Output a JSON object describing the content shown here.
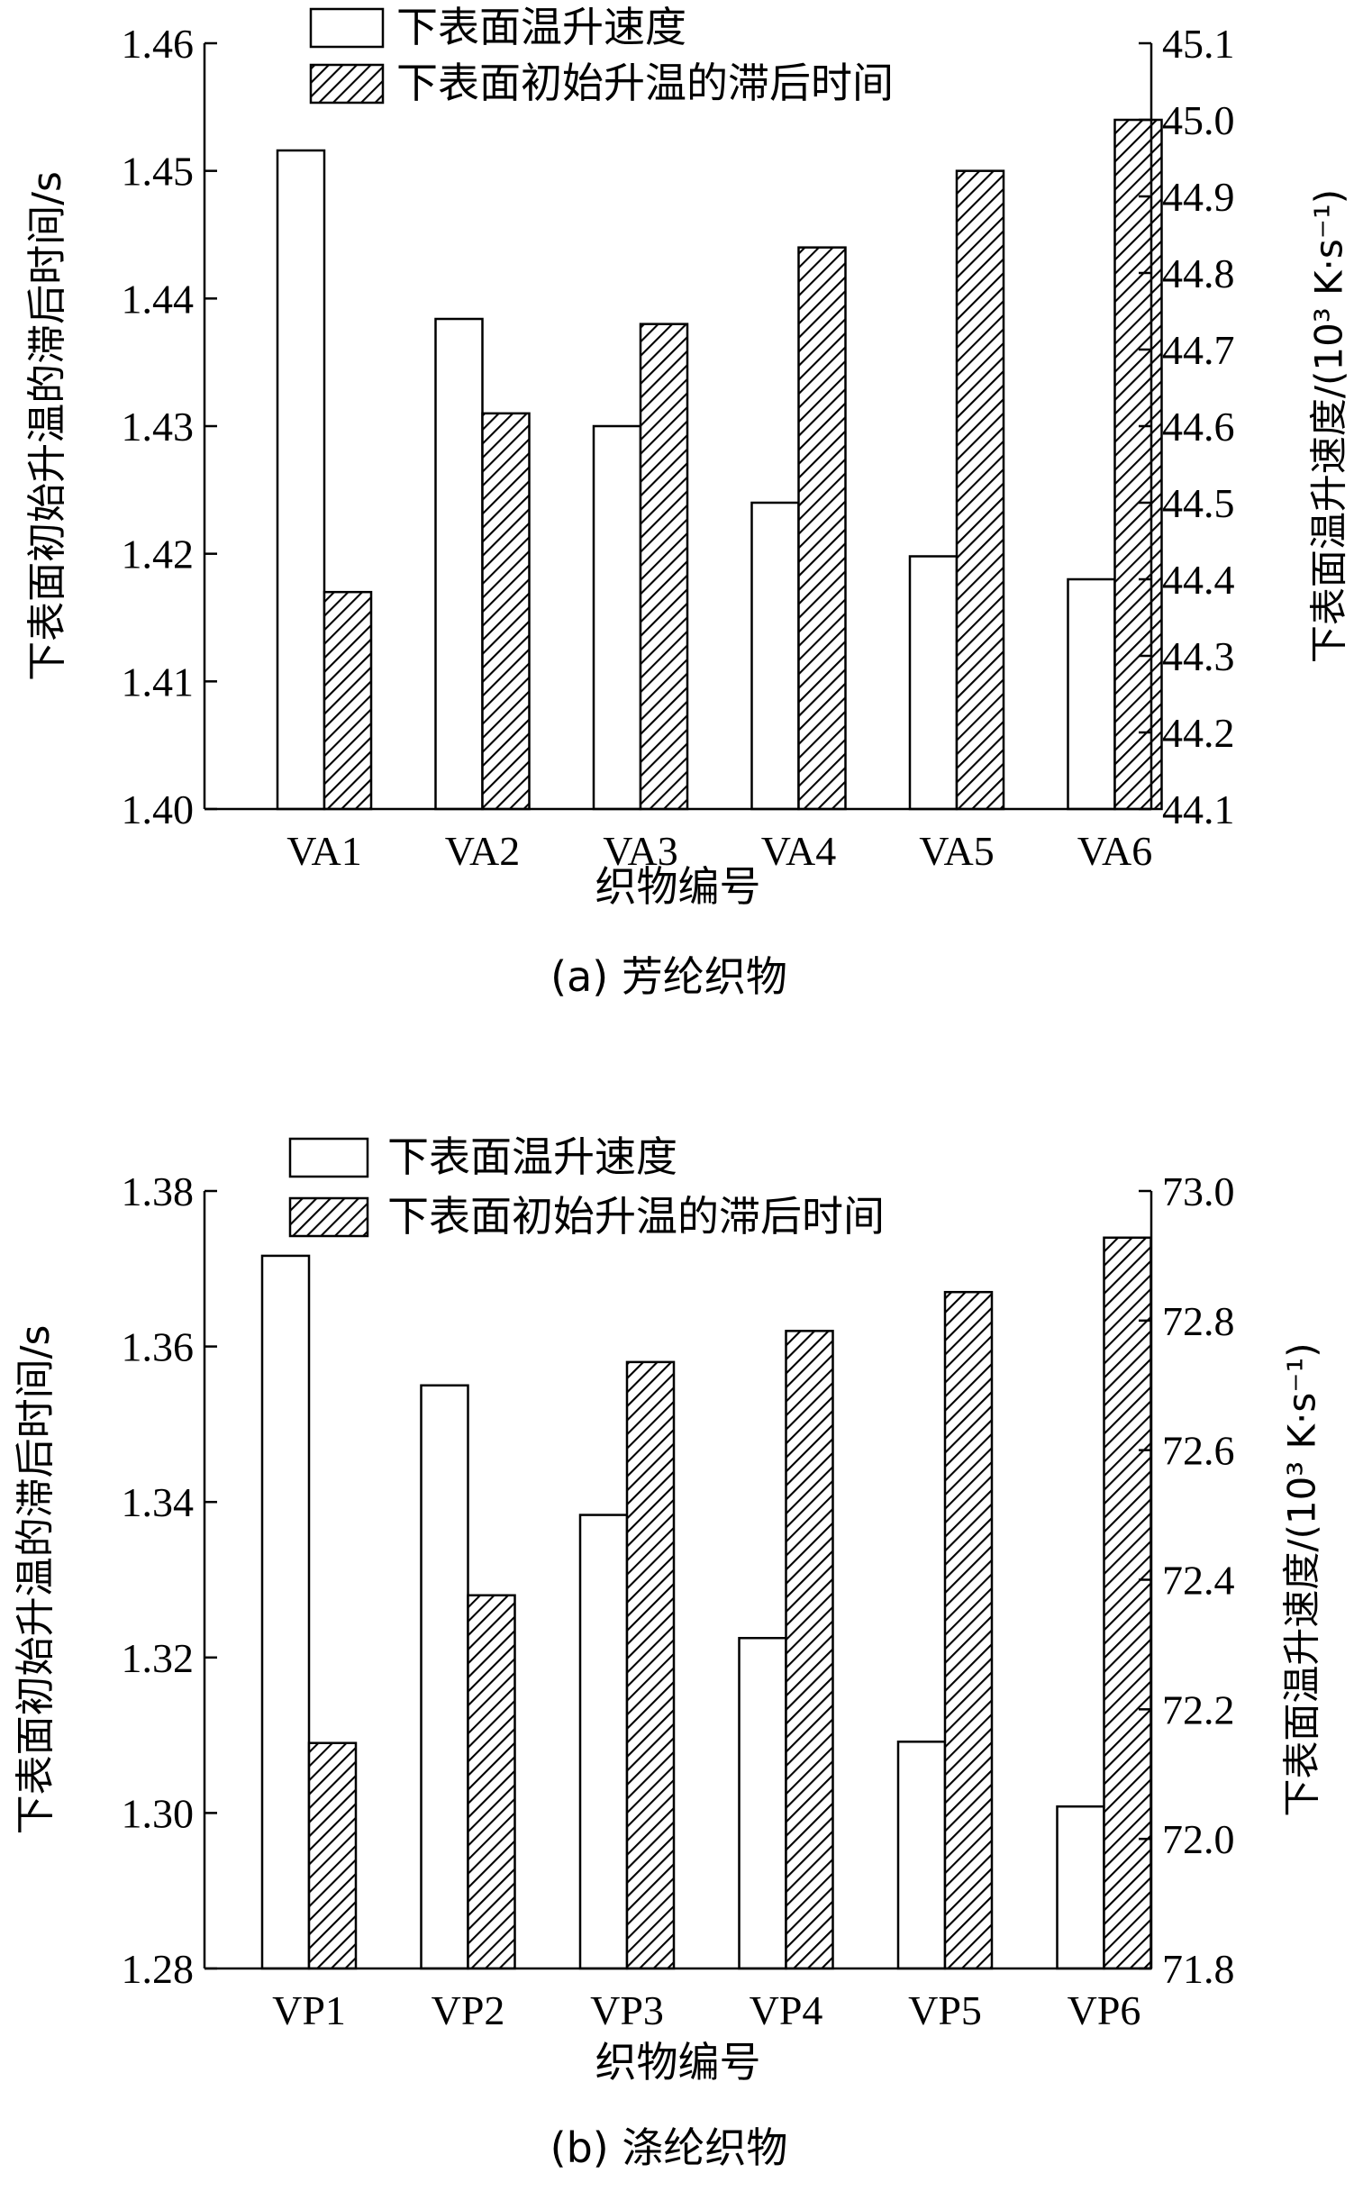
{
  "chart_data": [
    {
      "id": "a",
      "type": "bar",
      "caption": "(a) 芳纶织物",
      "xlabel": "织物编号",
      "ylabel_left": "下表面初始升温的滞后时间/s",
      "ylabel_right": "下表面温升速度/(10³ K·s⁻¹)",
      "categories": [
        "VA1",
        "VA2",
        "VA3",
        "VA4",
        "VA5",
        "VA6"
      ],
      "ylim_left": [
        1.4,
        1.46
      ],
      "yticks_left": [
        "1.40",
        "1.41",
        "1.42",
        "1.43",
        "1.44",
        "1.45",
        "1.46"
      ],
      "ylim_right": [
        44.1,
        45.1
      ],
      "yticks_right": [
        "44.1",
        "44.2",
        "44.3",
        "44.4",
        "44.5",
        "44.6",
        "44.7",
        "44.8",
        "44.9",
        "45.0",
        "45.1"
      ],
      "series": [
        {
          "name": "下表面温升速度",
          "axis": "right",
          "pattern": "none",
          "values": [
            44.96,
            44.74,
            44.6,
            44.5,
            44.43,
            44.4
          ]
        },
        {
          "name": "下表面初始升温的滞后时间",
          "axis": "left",
          "pattern": "hatch",
          "values": [
            1.417,
            1.431,
            1.438,
            1.444,
            1.45,
            1.454
          ]
        }
      ]
    },
    {
      "id": "b",
      "type": "bar",
      "caption": "(b) 涤纶织物",
      "xlabel": "织物编号",
      "ylabel_left": "下表面初始升温的滞后时间/s",
      "ylabel_right": "下表面温升速度/(10³ K·s⁻¹)",
      "categories": [
        "VP1",
        "VP2",
        "VP3",
        "VP4",
        "VP5",
        "VP6"
      ],
      "ylim_left": [
        1.28,
        1.38
      ],
      "yticks_left": [
        "1.28",
        "1.30",
        "1.32",
        "1.34",
        "1.36",
        "1.38"
      ],
      "ylim_right": [
        71.8,
        73.0
      ],
      "yticks_right": [
        "71.8",
        "72.0",
        "72.2",
        "72.4",
        "72.6",
        "72.8",
        "73.0"
      ],
      "series": [
        {
          "name": "下表面温升速度",
          "axis": "right",
          "pattern": "none",
          "values": [
            72.9,
            72.7,
            72.5,
            72.31,
            72.15,
            72.05
          ]
        },
        {
          "name": "下表面初始升温的滞后时间",
          "axis": "left",
          "pattern": "hatch",
          "values": [
            1.309,
            1.328,
            1.358,
            1.362,
            1.367,
            1.374
          ]
        }
      ]
    }
  ]
}
